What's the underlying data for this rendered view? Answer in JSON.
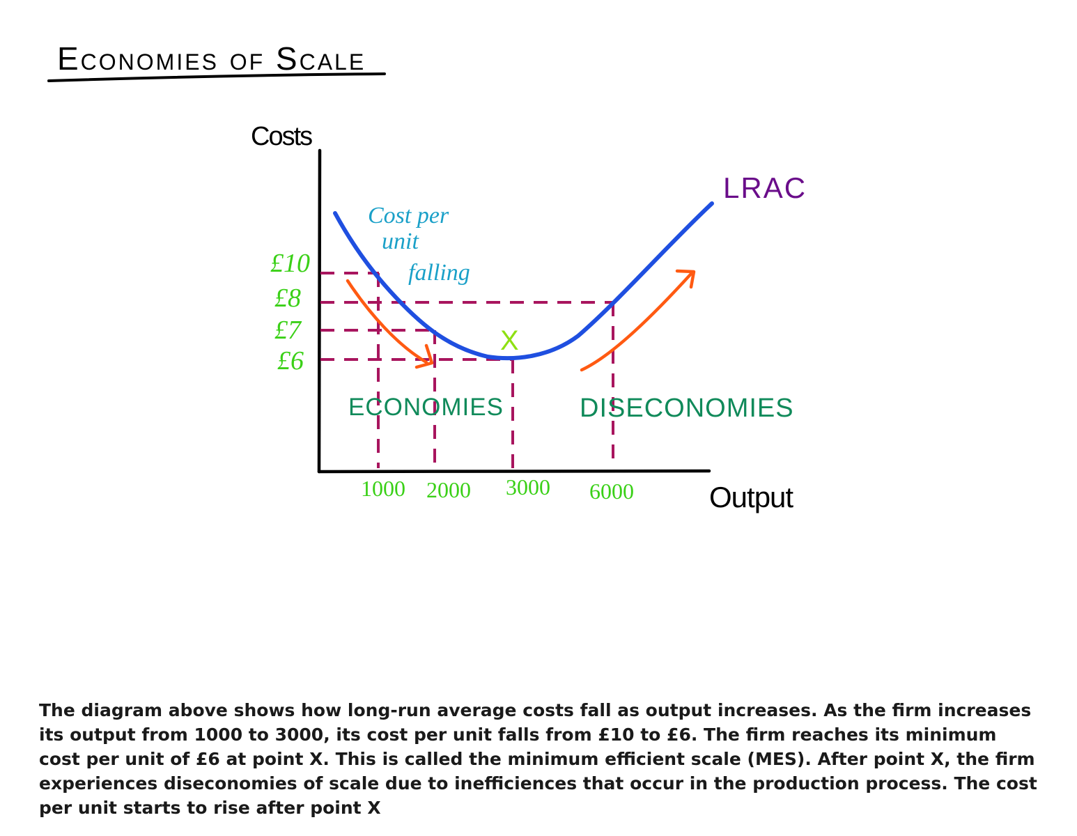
{
  "title": "Economies of Scale",
  "axes": {
    "y_label": "Costs",
    "x_label": "Output"
  },
  "annotations": {
    "cost_falling_line1": "Cost per",
    "cost_falling_line2": "unit",
    "cost_falling_line3": "falling",
    "curve_label": "LRAC",
    "min_point_marker": "X",
    "economies_label": "ECONOMIES",
    "diseconomies_label": "DISECONOMIES"
  },
  "colors": {
    "curve": "#1f4fe0",
    "curve_label": "#6a0d8a",
    "falling_text": "#1aa0c8",
    "guides": "#a8155e",
    "arrows": "#ff5a12",
    "ticks": "#3ad017",
    "min_marker": "#8ee012",
    "region_labels": "#108a5a",
    "axes": "#000000"
  },
  "chart_data": {
    "type": "line",
    "title": "Economies of Scale",
    "xlabel": "Output",
    "ylabel": "Costs",
    "x_ticks": [
      "1000",
      "2000",
      "3000",
      "6000"
    ],
    "y_ticks": [
      "£10",
      "£8",
      "£7",
      "£6"
    ],
    "series": [
      {
        "name": "LRAC",
        "points": [
          {
            "x": 1000,
            "y": 10
          },
          {
            "x": 2000,
            "y": 7
          },
          {
            "x": 3000,
            "y": 6
          },
          {
            "x": 6000,
            "y": 8
          }
        ]
      }
    ],
    "minimum_point": {
      "label": "X",
      "x": 3000,
      "y": 6
    },
    "regions": [
      "ECONOMIES",
      "DISECONOMIES"
    ]
  },
  "caption": "The diagram above shows how long-run average costs fall as output increases. As the firm increases its output from 1000 to 3000, its cost per unit falls from £10 to £6. The firm reaches its minimum cost per unit of £6 at point X. This is called the minimum efficient scale (MES). After point X, the firm experiences diseconomies of scale due to inefficiences that occur in the production process. The cost per unit starts to rise after point X"
}
